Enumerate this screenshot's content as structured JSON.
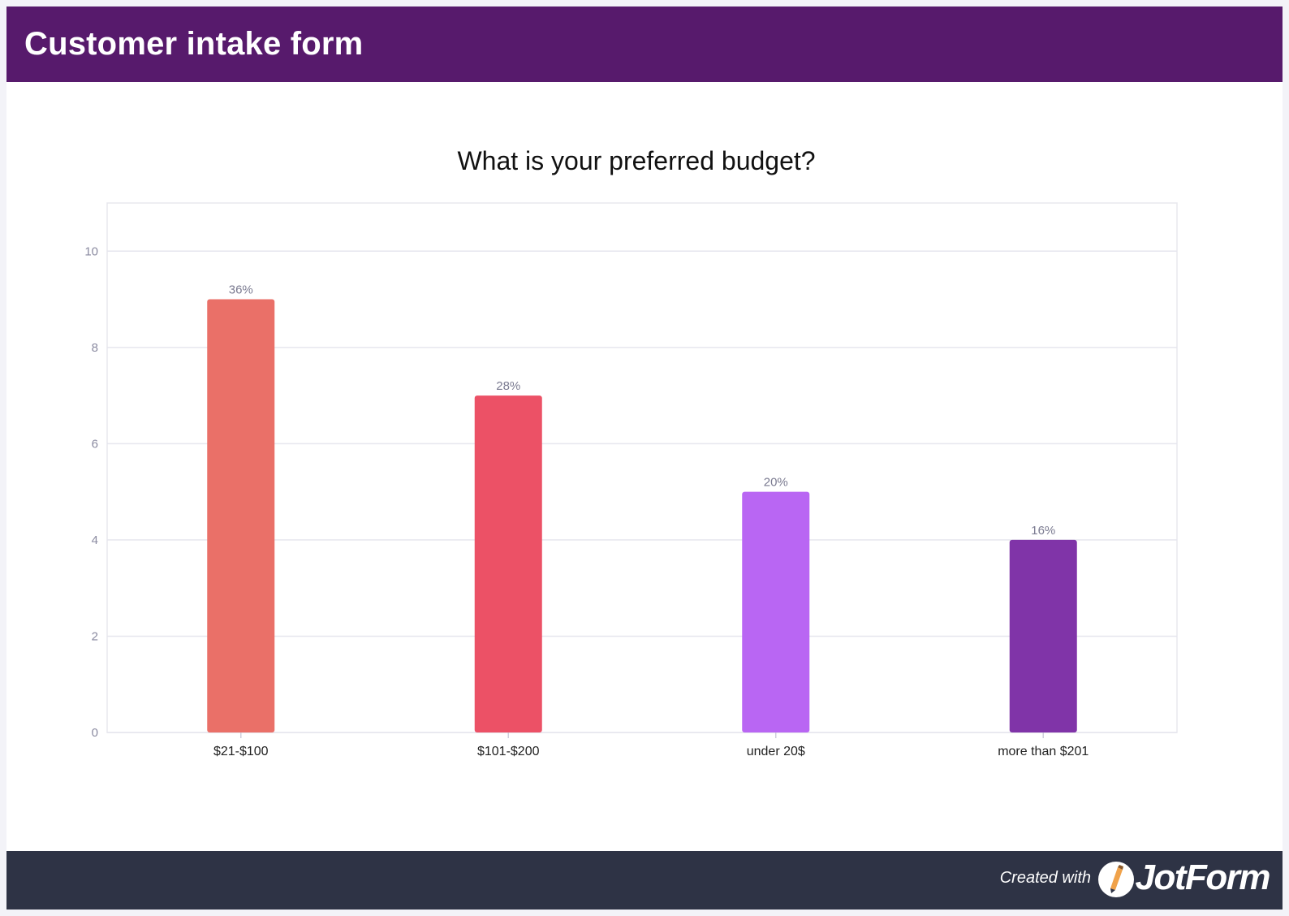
{
  "header": {
    "title": "Customer intake form"
  },
  "footer": {
    "created_with": "Created with",
    "brand": "JotForm"
  },
  "colors": {
    "header_bg": "#571a6c",
    "footer_bg": "#2e3345",
    "bars": [
      "#ea7068",
      "#ec5166",
      "#b966f3",
      "#8034a8"
    ]
  },
  "chart_data": {
    "type": "bar",
    "title": "What is your preferred budget?",
    "categories": [
      "$21-$100",
      "$101-$200",
      "under 20$",
      "more than $201"
    ],
    "values": [
      9,
      7,
      5,
      4
    ],
    "data_labels": [
      "36%",
      "28%",
      "20%",
      "16%"
    ],
    "yticks": [
      "0",
      "2",
      "4",
      "6",
      "8",
      "10"
    ],
    "ylim": [
      0,
      11
    ],
    "xlabel": "",
    "ylabel": "",
    "grid": true,
    "legend": "none"
  }
}
